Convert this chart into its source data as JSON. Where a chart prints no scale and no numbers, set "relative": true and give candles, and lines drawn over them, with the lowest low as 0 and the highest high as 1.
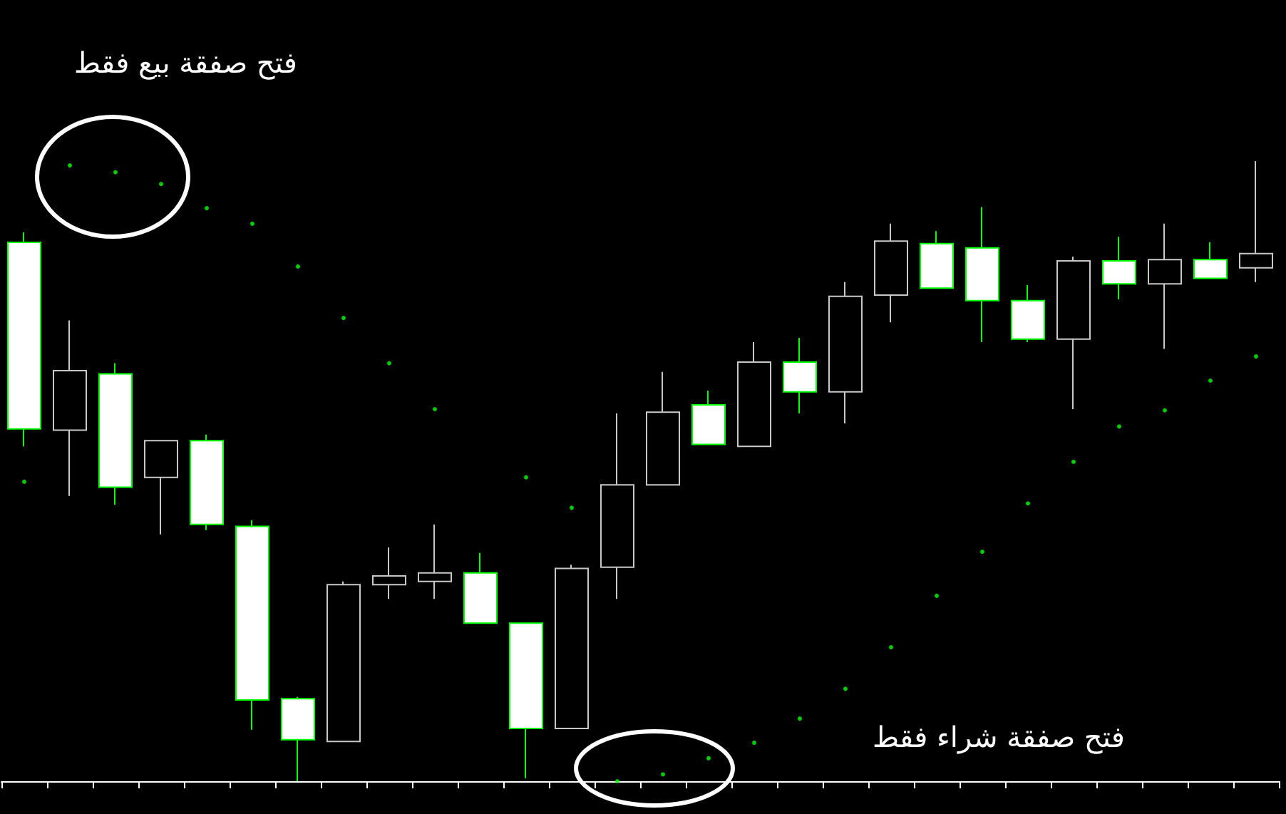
{
  "chart_data": {
    "type": "candlestick",
    "relative": true,
    "grid": false,
    "tick_labels": false,
    "categories": [
      null,
      null,
      null,
      null,
      null,
      null,
      null,
      null,
      null,
      null,
      null,
      null,
      null,
      null,
      null,
      null,
      null,
      null,
      null,
      null,
      null,
      null,
      null,
      null,
      null,
      null,
      null,
      null
    ],
    "annotations": [
      "فتح صفقة بيع فقط",
      "فتح صفقة شراء فقط"
    ],
    "series": [
      {
        "type": "candlestick",
        "ohlc": [
          [
            0.869,
            0.885,
            0.54,
            0.568
          ],
          [
            0.566,
            0.743,
            0.46,
            0.662
          ],
          [
            0.657,
            0.674,
            0.446,
            0.474
          ],
          [
            0.49,
            0.549,
            0.398,
            0.549
          ],
          [
            0.549,
            0.559,
            0.405,
            0.414
          ],
          [
            0.411,
            0.421,
            0.083,
            0.131
          ],
          [
            0.133,
            0.136,
            0.0,
            0.067
          ],
          [
            0.064,
            0.322,
            0.064,
            0.317
          ],
          [
            0.317,
            0.377,
            0.294,
            0.331
          ],
          [
            0.322,
            0.414,
            0.294,
            0.336
          ],
          [
            0.336,
            0.368,
            0.255,
            0.255
          ],
          [
            0.255,
            0.255,
            0.005,
            0.085
          ],
          [
            0.085,
            0.349,
            0.085,
            0.343
          ],
          [
            0.345,
            0.593,
            0.294,
            0.478
          ],
          [
            0.478,
            0.66,
            0.478,
            0.595
          ],
          [
            0.607,
            0.63,
            0.543,
            0.543
          ],
          [
            0.54,
            0.708,
            0.54,
            0.676
          ],
          [
            0.676,
            0.715,
            0.593,
            0.628
          ],
          [
            0.628,
            0.805,
            0.577,
            0.782
          ],
          [
            0.784,
            0.899,
            0.74,
            0.871
          ],
          [
            0.867,
            0.887,
            0.795,
            0.795
          ],
          [
            0.86,
            0.926,
            0.708,
            0.775
          ],
          [
            0.775,
            0.8,
            0.708,
            0.713
          ],
          [
            0.713,
            0.846,
            0.6,
            0.839
          ],
          [
            0.839,
            0.878,
            0.777,
            0.802
          ],
          [
            0.802,
            0.899,
            0.697,
            0.841
          ],
          [
            0.841,
            0.869,
            0.811,
            0.811
          ],
          [
            0.828,
            1.0,
            0.805,
            0.851
          ]
        ]
      },
      {
        "type": "scatter",
        "color": "#00ff00",
        "values": [
          0.483,
          0.993,
          0.982,
          0.963,
          0.924,
          0.899,
          0.83,
          0.747,
          0.674,
          0.6,
          null,
          0.49,
          0.441,
          0.0,
          0.011,
          0.037,
          0.062,
          0.101,
          0.149,
          0.216,
          0.299,
          0.37,
          0.448,
          0.515,
          0.572,
          0.598,
          0.646,
          0.685
        ]
      }
    ]
  }
}
